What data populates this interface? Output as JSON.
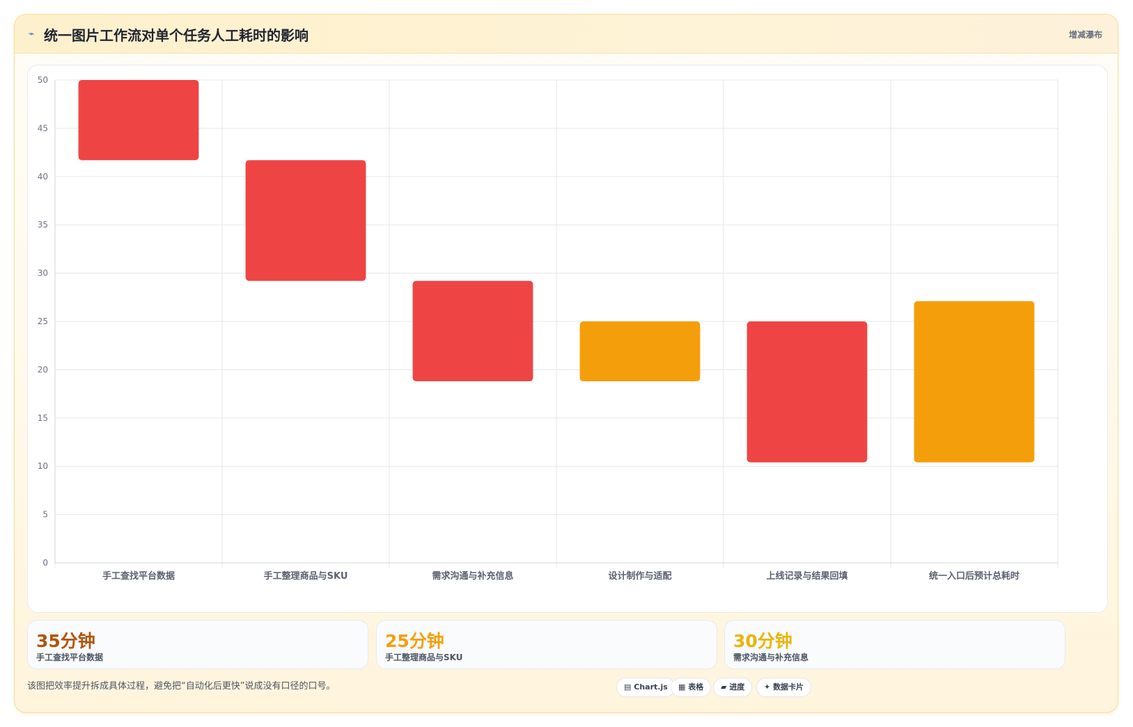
{
  "header": {
    "icon": "chart-spark-icon",
    "title": "统一图片工作流对单个任务人工耗时的影响",
    "tag": "增减瀑布"
  },
  "colors": {
    "decrease": "#ef4444",
    "neutral": "#f59e0b",
    "grid": "#e5e7eb"
  },
  "chart_data": {
    "type": "bar",
    "subtype": "waterfall",
    "categories": [
      "手工查找平台数据",
      "手工整理商品与SKU",
      "需求沟通与补充信息",
      "设计制作与适配",
      "上线记录与结果回填",
      "统一入口后预计总耗时"
    ],
    "ranges": [
      {
        "from": 41.7,
        "to": 50.0,
        "kind": "decrease"
      },
      {
        "from": 29.2,
        "to": 41.7,
        "kind": "decrease"
      },
      {
        "from": 18.8,
        "to": 29.2,
        "kind": "decrease"
      },
      {
        "from": 18.8,
        "to": 25.0,
        "kind": "neutral"
      },
      {
        "from": 10.4,
        "to": 25.0,
        "kind": "decrease"
      },
      {
        "from": 10.4,
        "to": 27.1,
        "kind": "neutral"
      }
    ],
    "ylim": [
      0,
      50
    ],
    "yticks": [
      0,
      5,
      10,
      15,
      20,
      25,
      30,
      35,
      40,
      45,
      50
    ],
    "grid": true,
    "legend": "none"
  },
  "stats": [
    {
      "value": "35分钟",
      "label": "手工查找平台数据",
      "color": "#b45309"
    },
    {
      "value": "25分钟",
      "label": "手工整理商品与SKU",
      "color": "#f59e0b"
    },
    {
      "value": "30分钟",
      "label": "需求沟通与补充信息",
      "color": "#eab308"
    }
  ],
  "footnote": "该图把效率提升拆成具体过程，避免把“自动化后更快”说成没有口径的口号。",
  "chips": [
    {
      "icon": "chart-icon",
      "glyph": "▤",
      "label": "Chart.js"
    },
    {
      "icon": "table-icon",
      "glyph": "▦",
      "label": "表格"
    },
    {
      "icon": "progress-icon",
      "glyph": "▰",
      "label": "进度"
    },
    {
      "icon": "sparkle-icon",
      "glyph": "✦",
      "label": "数据卡片"
    }
  ]
}
